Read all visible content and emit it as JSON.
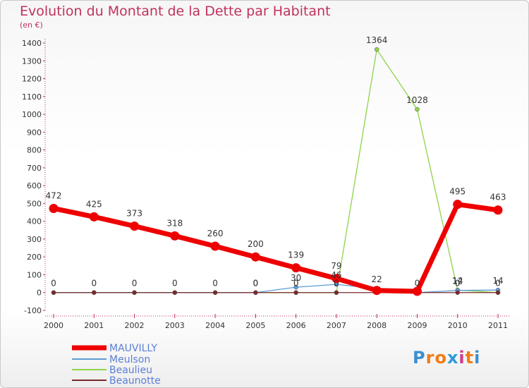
{
  "page": {
    "title": "Evolution du Montant de la Dette par Habitant",
    "subtitle": "(en €)"
  },
  "logo": {
    "letters": [
      "P",
      "r",
      "o",
      "x",
      "i",
      "t",
      "i"
    ],
    "colors": [
      "#3b8fd0",
      "#f07d1a",
      "#f07d1a",
      "#2e9ad6",
      "#d43c8a",
      "#f07d1a",
      "#3b8fd0"
    ]
  },
  "chart_data": {
    "type": "line",
    "title": "Evolution du Montant de la Dette par Habitant",
    "ylabel": "(en €)",
    "xlabel": "",
    "ylim": [
      -100,
      1400
    ],
    "yticks": [
      -100,
      0,
      100,
      200,
      300,
      400,
      500,
      600,
      700,
      800,
      900,
      1000,
      1100,
      1200,
      1300,
      1400
    ],
    "categories": [
      "2000",
      "2001",
      "2002",
      "2003",
      "2004",
      "2005",
      "2006",
      "2007",
      "2008",
      "2009",
      "2010",
      "2011"
    ],
    "legend_position": "bottom-left",
    "series": [
      {
        "name": "MAUVILLY",
        "color": "#ee0000",
        "values": [
          472,
          425,
          373,
          318,
          260,
          200,
          139,
          79,
          12,
          7,
          495,
          463
        ],
        "labels": [
          "472",
          "425",
          "373",
          "318",
          "260",
          "200",
          "139",
          "79",
          "",
          "",
          "495",
          "463"
        ]
      },
      {
        "name": "Meulson",
        "color": "#5b9bd5",
        "values": [
          0,
          0,
          0,
          0,
          0,
          0,
          30,
          46,
          22,
          0,
          12,
          14
        ],
        "labels": [
          "0",
          "0",
          "0",
          "0",
          "0",
          "0",
          "30",
          "46",
          "22",
          "0",
          "12",
          "14"
        ]
      },
      {
        "name": "Beaulieu",
        "color": "#8ed34a",
        "values": [
          0,
          0,
          0,
          0,
          0,
          0,
          0,
          0,
          1364,
          1028,
          14,
          0
        ],
        "labels": [
          "",
          "",
          "",
          "",
          "",
          "",
          "",
          "",
          "1364",
          "1028",
          "14",
          ""
        ]
      },
      {
        "name": "Beaunotte",
        "color": "#7a2a2a",
        "values": [
          0,
          0,
          0,
          0,
          0,
          0,
          0,
          0,
          0,
          0,
          0,
          0
        ],
        "labels": [
          "",
          "",
          "",
          "",
          "",
          "0",
          "0",
          "0",
          "",
          "",
          "0",
          "0"
        ]
      }
    ]
  }
}
